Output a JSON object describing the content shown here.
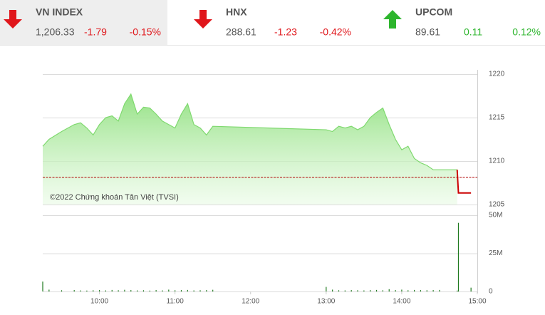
{
  "header": {
    "indices": [
      {
        "name": "VN INDEX",
        "value": "1,206.33",
        "change": "-1.79",
        "percent": "-0.15%",
        "direction": "down"
      },
      {
        "name": "HNX",
        "value": "288.61",
        "change": "-1.23",
        "percent": "-0.42%",
        "direction": "down"
      },
      {
        "name": "UPCOM",
        "value": "89.61",
        "change": "0.11",
        "percent": "0.12%",
        "direction": "up"
      }
    ]
  },
  "chart_data": [
    {
      "type": "area",
      "annotation": "©2022 Chứng khoán Tân Việt (TVSI)",
      "x": [
        555,
        560,
        570,
        580,
        585,
        590,
        595,
        600,
        605,
        610,
        615,
        620,
        625,
        630,
        635,
        640,
        645,
        650,
        655,
        660,
        665,
        670,
        675,
        680,
        685,
        690,
        780,
        785,
        790,
        795,
        800,
        805,
        810,
        815,
        820,
        825,
        830,
        835,
        840,
        845,
        850,
        855,
        860,
        865,
        870,
        884,
        885,
        895
      ],
      "series": [
        {
          "color": "#7fd96f",
          "values": [
            1211.7,
            1212.5,
            1213.4,
            1214.2,
            1214.4,
            1213.8,
            1213.0,
            1214.2,
            1215.0,
            1215.2,
            1214.6,
            1216.6,
            1217.7,
            1215.4,
            1216.2,
            1216.1,
            1215.4,
            1214.6,
            1214.2,
            1213.8,
            1215.4,
            1216.6,
            1214.2,
            1213.8,
            1213.0,
            1214.0,
            1213.6,
            1213.4,
            1214.0,
            1213.8,
            1214.0,
            1213.6,
            1214.0,
            1215.0,
            1215.6,
            1216.1,
            1214.2,
            1212.5,
            1211.3,
            1211.7,
            1210.3,
            1209.8,
            1209.5,
            1209.0,
            1209.0,
            1209.0,
            null,
            null
          ]
        },
        {
          "color": "#cc0000",
          "values": [
            null,
            null,
            null,
            null,
            null,
            null,
            null,
            null,
            null,
            null,
            null,
            null,
            null,
            null,
            null,
            null,
            null,
            null,
            null,
            null,
            null,
            null,
            null,
            null,
            null,
            null,
            null,
            null,
            null,
            null,
            null,
            null,
            null,
            null,
            null,
            null,
            null,
            null,
            null,
            null,
            null,
            null,
            null,
            null,
            null,
            1209.0,
            1206.33,
            1206.33
          ]
        }
      ],
      "reference": 1208.12,
      "reference_color": "#b00000",
      "xlim": [
        555,
        900
      ],
      "ylim": [
        1205,
        1220
      ],
      "yticks": [
        1205,
        1210,
        1215,
        1220
      ],
      "grid": true
    },
    {
      "type": "bar",
      "color": "#1f7a1f",
      "x": [
        555,
        560,
        570,
        580,
        585,
        590,
        595,
        600,
        605,
        610,
        615,
        620,
        625,
        630,
        635,
        640,
        645,
        650,
        655,
        660,
        665,
        670,
        675,
        680,
        685,
        690,
        780,
        785,
        790,
        795,
        800,
        805,
        810,
        815,
        820,
        825,
        830,
        835,
        840,
        845,
        850,
        855,
        860,
        865,
        870,
        884,
        885,
        895
      ],
      "values": [
        6.5,
        1.2,
        0.8,
        0.9,
        0.7,
        0.6,
        0.8,
        0.9,
        0.7,
        1.0,
        0.8,
        1.1,
        0.9,
        0.7,
        0.8,
        0.6,
        0.9,
        0.7,
        1.2,
        0.8,
        0.9,
        1.0,
        0.7,
        0.8,
        0.9,
        1.1,
        3.0,
        1.2,
        0.8,
        0.7,
        0.9,
        0.8,
        0.7,
        0.9,
        1.0,
        0.8,
        1.5,
        0.9,
        1.2,
        0.8,
        1.0,
        0.9,
        0.8,
        0.9,
        1.0,
        0.6,
        45,
        2.5
      ],
      "xlim": [
        555,
        900
      ],
      "ylim": [
        0,
        50
      ],
      "yticks": [
        0,
        {
          "value": 25,
          "label": "25M"
        },
        {
          "value": 50,
          "label": "50M"
        }
      ],
      "xticks": [
        {
          "value": 600,
          "label": "10:00"
        },
        {
          "value": 660,
          "label": "11:00"
        },
        {
          "value": 720,
          "label": "12:00"
        },
        {
          "value": 780,
          "label": "13:00"
        },
        {
          "value": 840,
          "label": "14:00"
        },
        {
          "value": 900,
          "label": "15:00"
        }
      ],
      "grid": true
    }
  ]
}
